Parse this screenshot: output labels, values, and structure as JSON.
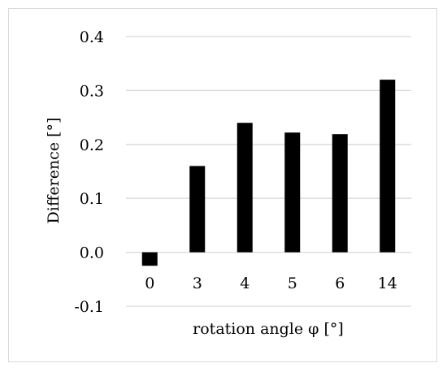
{
  "chart_data": {
    "type": "bar",
    "title": "",
    "xlabel": "rotation angle φ [°]",
    "ylabel": "Difference [°]",
    "categories": [
      "0",
      "3",
      "4",
      "5",
      "6",
      "14"
    ],
    "values": [
      -0.025,
      0.16,
      0.24,
      0.222,
      0.219,
      0.32
    ],
    "ylim": [
      -0.1,
      0.4
    ],
    "yticks": [
      "-0.1",
      "0.0",
      "0.1",
      "0.2",
      "0.3",
      "0.4"
    ],
    "grid": true,
    "legend": "none",
    "colors": {
      "bar": "#000000",
      "grid": "#d9d9d9",
      "frame": "#d9d9d9"
    }
  }
}
